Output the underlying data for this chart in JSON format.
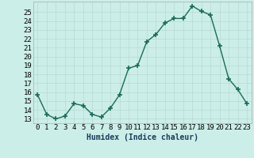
{
  "x": [
    0,
    1,
    2,
    3,
    4,
    5,
    6,
    7,
    8,
    9,
    10,
    11,
    12,
    13,
    14,
    15,
    16,
    17,
    18,
    19,
    20,
    21,
    22,
    23
  ],
  "y": [
    15.7,
    13.5,
    13.0,
    13.3,
    14.7,
    14.5,
    13.5,
    13.2,
    14.2,
    15.7,
    18.7,
    19.0,
    21.7,
    22.5,
    23.8,
    24.3,
    24.3,
    25.7,
    25.1,
    24.7,
    21.2,
    17.5,
    16.3,
    14.7
  ],
  "xlabel": "Humidex (Indice chaleur)",
  "xlim": [
    -0.5,
    23.5
  ],
  "ylim": [
    12.5,
    26.2
  ],
  "yticks": [
    13,
    14,
    15,
    16,
    17,
    18,
    19,
    20,
    21,
    22,
    23,
    24,
    25
  ],
  "xticks": [
    0,
    1,
    2,
    3,
    4,
    5,
    6,
    7,
    8,
    9,
    10,
    11,
    12,
    13,
    14,
    15,
    16,
    17,
    18,
    19,
    20,
    21,
    22,
    23
  ],
  "line_color": "#1a6b5a",
  "marker_color": "#1a6b5a",
  "bg_color": "#cceee8",
  "grid_color": "#b8d8d4",
  "xlabel_fontsize": 7,
  "tick_fontsize": 6.5,
  "line_width": 1.0,
  "marker_size": 4
}
